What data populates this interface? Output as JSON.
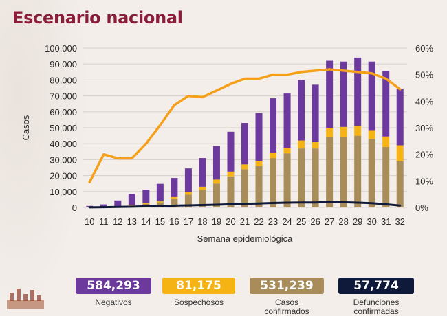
{
  "title": "Escenario nacional",
  "chart_data": {
    "type": "bar",
    "stacked": true,
    "categories": [
      "10",
      "11",
      "12",
      "13",
      "14",
      "15",
      "16",
      "17",
      "18",
      "19",
      "20",
      "21",
      "22",
      "23",
      "24",
      "25",
      "26",
      "27",
      "28",
      "29",
      "30",
      "31",
      "32"
    ],
    "xlabel": "Semana epidemiológica",
    "ylabel": "Casos",
    "ylim": [
      0,
      100000
    ],
    "y2lim": [
      0,
      60
    ],
    "yticks": [
      "0",
      "10,000",
      "20,000",
      "30,000",
      "40,000",
      "50,000",
      "60,000",
      "70,000",
      "80,000",
      "90,000",
      "100,000"
    ],
    "y2ticks": [
      "0%",
      "10%",
      "20%",
      "30%",
      "40%",
      "50%",
      "60%"
    ],
    "grid": true,
    "series": [
      {
        "key": "confirmados",
        "color": "#a88c5a",
        "values": [
          100,
          300,
          700,
          1200,
          2200,
          3200,
          5500,
          8000,
          11000,
          15000,
          19500,
          24000,
          26000,
          31000,
          34000,
          37000,
          37000,
          44000,
          44000,
          45000,
          43000,
          38000,
          29000
        ]
      },
      {
        "key": "sospechosos",
        "color": "#f5b414",
        "values": [
          50,
          100,
          200,
          300,
          400,
          600,
          1000,
          1500,
          2000,
          2500,
          3000,
          3000,
          3200,
          3500,
          3500,
          5000,
          4000,
          6000,
          6500,
          6000,
          5500,
          6500,
          10000
        ]
      },
      {
        "key": "negativos",
        "color": "#6b3a9c",
        "values": [
          800,
          1500,
          3500,
          7000,
          8500,
          11000,
          12000,
          15000,
          18000,
          21000,
          25000,
          26000,
          30000,
          34000,
          34000,
          38000,
          36000,
          42000,
          41000,
          43000,
          43000,
          41000,
          35500
        ]
      }
    ],
    "line_series": {
      "color": "#f5a01a",
      "axis": "right",
      "values": [
        9.5,
        20,
        18.5,
        18.5,
        24,
        31,
        38.5,
        42,
        41.5,
        44,
        46.5,
        48.5,
        48.5,
        50,
        50,
        51,
        51.5,
        52,
        51.5,
        51,
        50.5,
        48.5,
        44.5
      ]
    },
    "line_series_2": {
      "color": "#0f1a3a",
      "axis": "left",
      "values": [
        50,
        150,
        300,
        500,
        700,
        900,
        1100,
        1300,
        1500,
        1700,
        2000,
        2300,
        2500,
        2800,
        3000,
        3100,
        3100,
        3500,
        3300,
        3000,
        2700,
        2000,
        1200
      ]
    }
  },
  "legend": [
    {
      "value": "584,293",
      "label": "Negativos",
      "color": "#6b3a9c"
    },
    {
      "value": "81,175",
      "label": "Sospechosos",
      "color": "#f5b414"
    },
    {
      "value": "531,239",
      "label": "Casos confirmados",
      "color": "#a88c5a"
    },
    {
      "value": "57,774",
      "label": "Defunciones confirmadas",
      "color": "#0f1a3a"
    }
  ]
}
